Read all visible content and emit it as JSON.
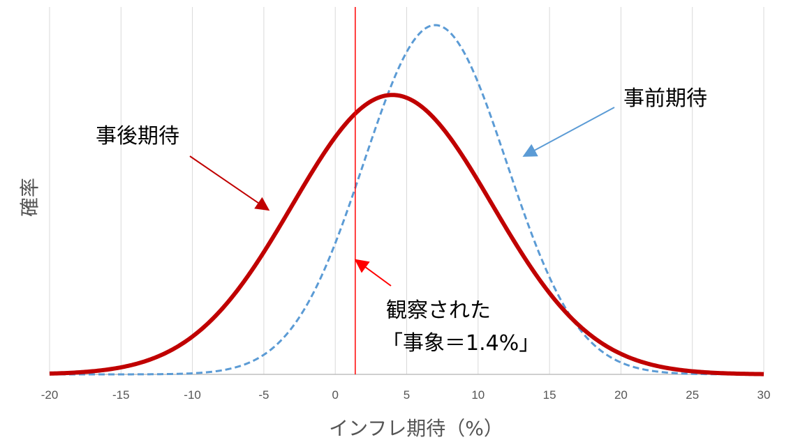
{
  "chart_data": {
    "type": "line",
    "xlabel": "インフレ期待（%）",
    "ylabel": "確率",
    "xlim": [
      -20,
      30
    ],
    "x_ticks": [
      -20,
      -15,
      -10,
      -5,
      0,
      5,
      10,
      15,
      20,
      25,
      30
    ],
    "grid": "vertical",
    "legend": "none",
    "series": [
      {
        "name": "事後期待",
        "type": "normal",
        "mean": 4,
        "sd": 7,
        "peak": 0.8,
        "color": "#c00000",
        "style": "solid"
      },
      {
        "name": "事前期待",
        "type": "normal",
        "mean": 7,
        "sd": 5,
        "peak": 1.0,
        "color": "#5b9bd5",
        "style": "dashed"
      }
    ],
    "observed_value": 1.4,
    "observed_color": "#ff0000",
    "annotations": [
      {
        "text": "事後期待"
      },
      {
        "text": "事前期待"
      },
      {
        "lines": [
          "観察された",
          "「事象＝1.4%」"
        ]
      }
    ]
  }
}
